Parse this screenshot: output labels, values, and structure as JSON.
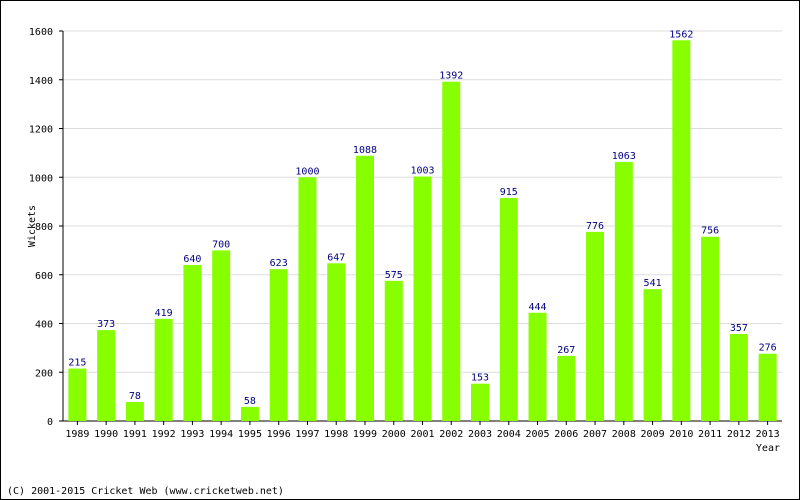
{
  "chart_data": {
    "type": "bar",
    "categories": [
      "1989",
      "1990",
      "1991",
      "1992",
      "1993",
      "1994",
      "1995",
      "1996",
      "1997",
      "1998",
      "1999",
      "2000",
      "2001",
      "2002",
      "2003",
      "2004",
      "2005",
      "2006",
      "2007",
      "2008",
      "2009",
      "2010",
      "2011",
      "2012",
      "2013"
    ],
    "values": [
      215,
      373,
      78,
      419,
      640,
      700,
      58,
      623,
      1000,
      647,
      1088,
      575,
      1003,
      1392,
      153,
      915,
      444,
      267,
      776,
      1063,
      541,
      1562,
      756,
      357,
      276
    ],
    "value_labels": [
      "215",
      "373",
      "78",
      "419",
      "640",
      "700",
      "58",
      "623",
      "1000",
      "647",
      "1088",
      "575",
      "1003",
      "1392",
      "153",
      "915",
      "444",
      "267",
      "776",
      "1063",
      "541",
      "1562",
      "756",
      "357",
      "276"
    ],
    "xlabel": "Year",
    "ylabel": "Wickets",
    "ylim": [
      0,
      1600
    ],
    "yticks": [
      0,
      200,
      400,
      600,
      800,
      1000,
      1200,
      1400,
      1600
    ],
    "ytick_labels": [
      "0",
      "200",
      "400",
      "600",
      "800",
      "1000",
      "1200",
      "1400",
      "1600"
    ],
    "grid": true,
    "bar_color": "#88ff00",
    "label_color": "#000080",
    "grid_color": "#dddddd"
  },
  "footer": {
    "copyright": "(C) 2001-2015 Cricket Web (www.cricketweb.net)"
  }
}
